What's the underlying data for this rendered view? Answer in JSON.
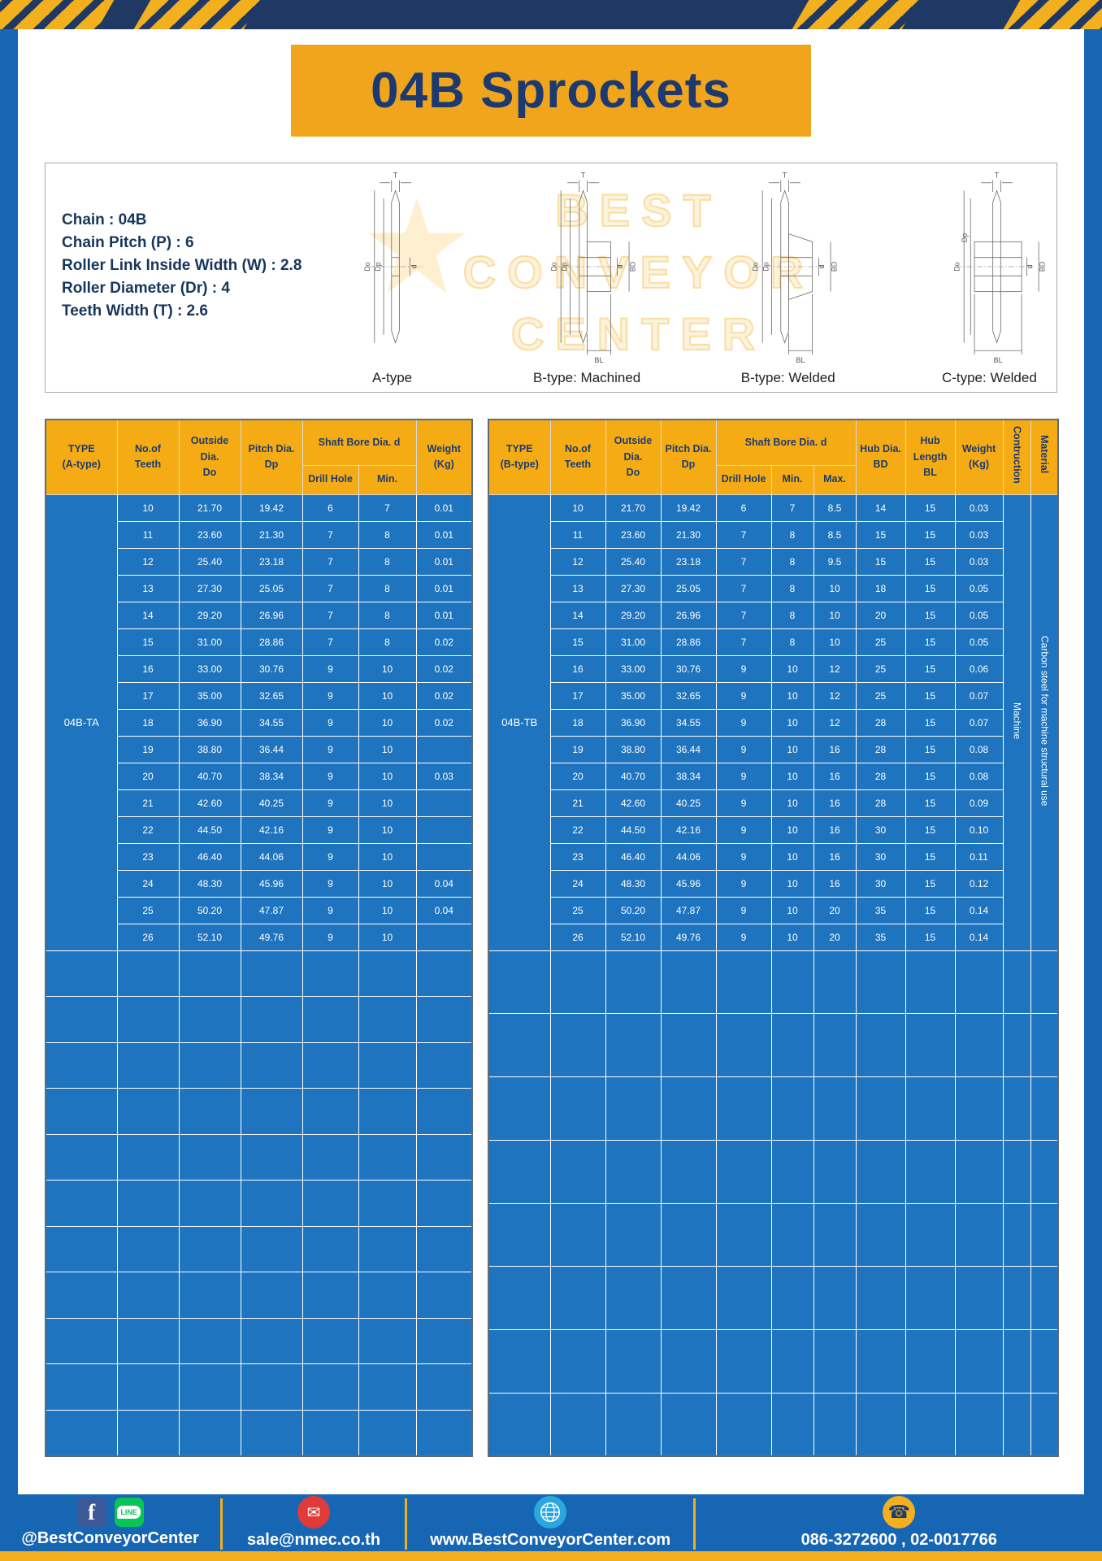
{
  "title": "04B Sprockets",
  "colors": {
    "banner_gold": "#F0A51D",
    "header_gold": "#F5AC14",
    "navy": "#1C3A70",
    "table_blue": "#1E74BE",
    "frame_blue": "#1766B3"
  },
  "specs": {
    "lines": [
      "Chain : 04B",
      "Chain Pitch (P) : 6",
      "Roller Link Inside Width (W) : 2.8",
      "Roller Diameter (Dr) : 4",
      "Teeth Width (T) : 2.6"
    ]
  },
  "drawings": {
    "labels": [
      "A-type",
      "B-type: Machined",
      "B-type: Welded",
      "C-type: Welded"
    ],
    "dims": {
      "t": "T",
      "do": "Do",
      "dp": "Dp",
      "d": "d",
      "bd": "BD",
      "bl": "BL"
    }
  },
  "watermark": {
    "lines": [
      "BEST",
      "CONVEYOR",
      "CENTER"
    ]
  },
  "table_a": {
    "type_label": "04B-TA",
    "headers": {
      "type": "TYPE\n(A-type)",
      "teeth": "No.of\nTeeth",
      "outside": "Outside\nDia.\nDo",
      "pitch": "Pitch Dia.\nDp",
      "shaft": "Shaft Bore Dia. d",
      "drill": "Drill Hole",
      "min": "Min.",
      "weight": "Weight\n(Kg)"
    },
    "rows": [
      [
        "10",
        "21.70",
        "19.42",
        "6",
        "7",
        "0.01"
      ],
      [
        "11",
        "23.60",
        "21.30",
        "7",
        "8",
        "0.01"
      ],
      [
        "12",
        "25.40",
        "23.18",
        "7",
        "8",
        "0.01"
      ],
      [
        "13",
        "27.30",
        "25.05",
        "7",
        "8",
        "0.01"
      ],
      [
        "14",
        "29.20",
        "26.96",
        "7",
        "8",
        "0.01"
      ],
      [
        "15",
        "31.00",
        "28.86",
        "7",
        "8",
        "0.02"
      ],
      [
        "16",
        "33.00",
        "30.76",
        "9",
        "10",
        "0.02"
      ],
      [
        "17",
        "35.00",
        "32.65",
        "9",
        "10",
        "0.02"
      ],
      [
        "18",
        "36.90",
        "34.55",
        "9",
        "10",
        "0.02"
      ],
      [
        "19",
        "38.80",
        "36.44",
        "9",
        "10",
        ""
      ],
      [
        "20",
        "40.70",
        "38.34",
        "9",
        "10",
        "0.03"
      ],
      [
        "21",
        "42.60",
        "40.25",
        "9",
        "10",
        ""
      ],
      [
        "22",
        "44.50",
        "42.16",
        "9",
        "10",
        ""
      ],
      [
        "23",
        "46.40",
        "44.06",
        "9",
        "10",
        ""
      ],
      [
        "24",
        "48.30",
        "45.96",
        "9",
        "10",
        "0.04"
      ],
      [
        "25",
        "50.20",
        "47.87",
        "9",
        "10",
        "0.04"
      ],
      [
        "26",
        "52.10",
        "49.76",
        "9",
        "10",
        ""
      ]
    ],
    "empty_row_count": 11
  },
  "table_b": {
    "type_label": "04B-TB",
    "headers": {
      "type": "TYPE\n(B-type)",
      "teeth": "No.of\nTeeth",
      "outside": "Outside\nDia.\nDo",
      "pitch": "Pitch Dia.\nDp",
      "shaft": "Shaft Bore Dia. d",
      "drill": "Drill Hole",
      "min": "Min.",
      "max": "Max.",
      "hub_dia": "Hub Dia.\nBD",
      "hub_length": "Hub\nLength\nBL",
      "weight": "Weight\n(Kg)",
      "construction": "Contruction",
      "material": "Material"
    },
    "rows": [
      [
        "10",
        "21.70",
        "19.42",
        "6",
        "7",
        "8.5",
        "14",
        "15",
        "0.03"
      ],
      [
        "11",
        "23.60",
        "21.30",
        "7",
        "8",
        "8.5",
        "15",
        "15",
        "0.03"
      ],
      [
        "12",
        "25.40",
        "23.18",
        "7",
        "8",
        "9.5",
        "15",
        "15",
        "0.03"
      ],
      [
        "13",
        "27.30",
        "25.05",
        "7",
        "8",
        "10",
        "18",
        "15",
        "0.05"
      ],
      [
        "14",
        "29.20",
        "26.96",
        "7",
        "8",
        "10",
        "20",
        "15",
        "0.05"
      ],
      [
        "15",
        "31.00",
        "28.86",
        "7",
        "8",
        "10",
        "25",
        "15",
        "0.05"
      ],
      [
        "16",
        "33.00",
        "30.76",
        "9",
        "10",
        "12",
        "25",
        "15",
        "0.06"
      ],
      [
        "17",
        "35.00",
        "32.65",
        "9",
        "10",
        "12",
        "25",
        "15",
        "0.07"
      ],
      [
        "18",
        "36.90",
        "34.55",
        "9",
        "10",
        "12",
        "28",
        "15",
        "0.07"
      ],
      [
        "19",
        "38.80",
        "36.44",
        "9",
        "10",
        "16",
        "28",
        "15",
        "0.08"
      ],
      [
        "20",
        "40.70",
        "38.34",
        "9",
        "10",
        "16",
        "28",
        "15",
        "0.08"
      ],
      [
        "21",
        "42.60",
        "40.25",
        "9",
        "10",
        "16",
        "28",
        "15",
        "0.09"
      ],
      [
        "22",
        "44.50",
        "42.16",
        "9",
        "10",
        "16",
        "30",
        "15",
        "0.10"
      ],
      [
        "23",
        "46.40",
        "44.06",
        "9",
        "10",
        "16",
        "30",
        "15",
        "0.11"
      ],
      [
        "24",
        "48.30",
        "45.96",
        "9",
        "10",
        "16",
        "30",
        "15",
        "0.12"
      ],
      [
        "25",
        "50.20",
        "47.87",
        "9",
        "10",
        "20",
        "35",
        "15",
        "0.14"
      ],
      [
        "26",
        "52.10",
        "49.76",
        "9",
        "10",
        "20",
        "35",
        "15",
        "0.14"
      ]
    ],
    "construction_value": "Machine",
    "material_value": "Carbon steel for machine structural use",
    "empty_row_count": 8
  },
  "footer": {
    "facebook_letter": "f",
    "line_label": "LINE",
    "social": "@BestConveyorCenter",
    "email": "sale@nmec.co.th",
    "website": "www.BestConveyorCenter.com",
    "phone": "086-3272600 , 02-0017766",
    "icons": {
      "mail": "✉",
      "phone": "☎"
    }
  }
}
